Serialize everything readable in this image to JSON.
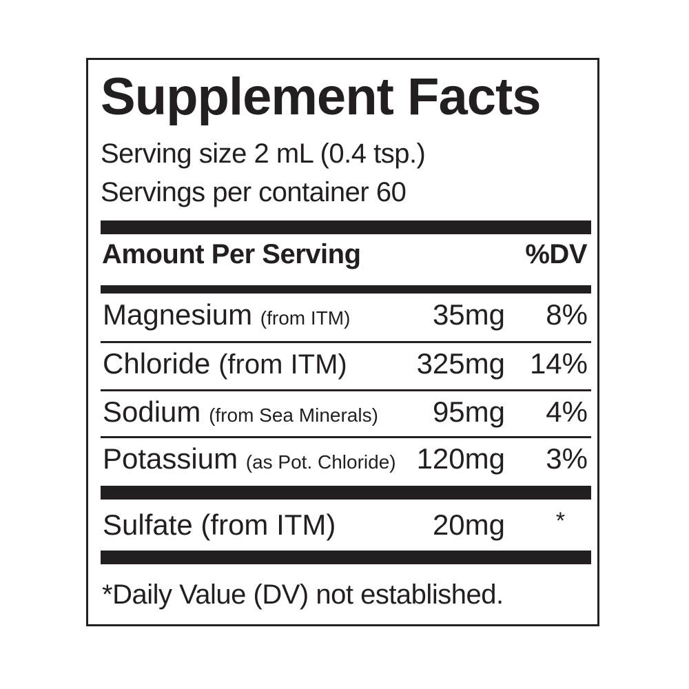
{
  "label": {
    "title": "Supplement Facts",
    "serving_size": "Serving size 2 mL (0.4 tsp.)",
    "servings_per_container": "Servings per container 60",
    "header_amount": "Amount Per Serving",
    "header_dv": "%DV",
    "nutrients": [
      {
        "name": "Magnesium",
        "note": "(from ITM)",
        "amount": "35mg",
        "dv": "8%"
      },
      {
        "name": "Chloride",
        "note": "(from ITM)",
        "amount": "325mg",
        "dv": "14%"
      },
      {
        "name": "Sodium",
        "note": "(from Sea Minerals)",
        "amount": "95mg",
        "dv": "4%"
      },
      {
        "name": "Potassium",
        "note": "(as Pot. Chloride)",
        "amount": "120mg",
        "dv": "3%"
      },
      {
        "name": "Sulfate (from ITM)",
        "note": "",
        "amount": "20mg",
        "dv": "*"
      }
    ],
    "footnote": "*Daily Value (DV) not established."
  }
}
